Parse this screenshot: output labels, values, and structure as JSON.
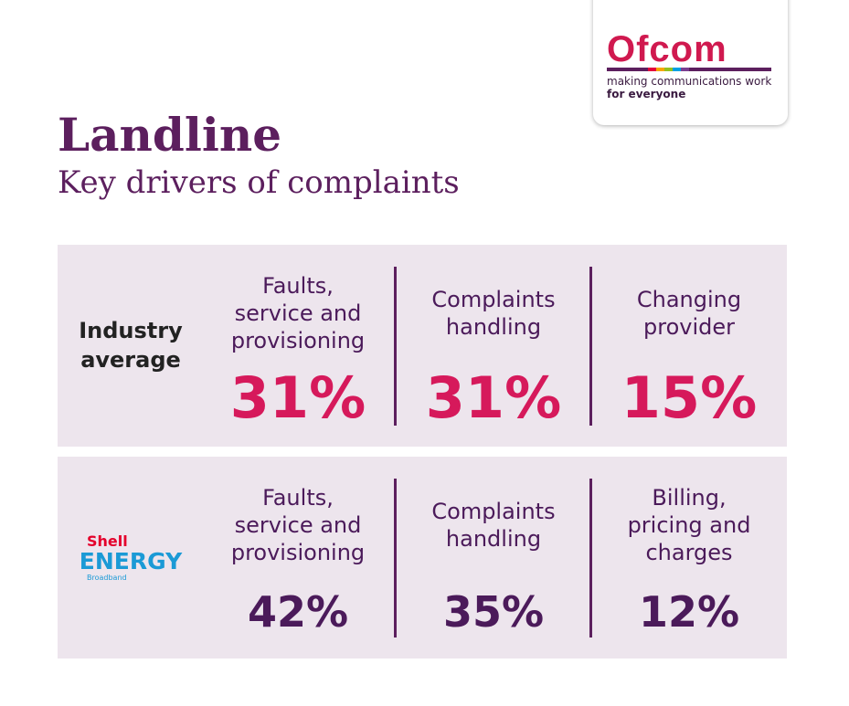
{
  "logo": {
    "name": "Ofcom",
    "tagline": [
      "making communications work",
      "for everyone"
    ]
  },
  "header": {
    "title": "Landline",
    "subtitle": "Key drivers of complaints"
  },
  "rows": [
    {
      "label": [
        "Industry",
        "average"
      ],
      "items": [
        {
          "lines": [
            "Faults,",
            "service and",
            "provisioning"
          ],
          "value": "31%"
        },
        {
          "lines": [
            "Complaints",
            "handling"
          ],
          "value": "31%"
        },
        {
          "lines": [
            "Changing",
            "provider"
          ],
          "value": "15%"
        }
      ]
    },
    {
      "brand": [
        "Shell",
        "ENERGY",
        "Broadband"
      ],
      "items": [
        {
          "lines": [
            "Faults,",
            "service and",
            "provisioning"
          ],
          "value": "42%"
        },
        {
          "lines": [
            "Complaints",
            "handling"
          ],
          "value": "35%"
        },
        {
          "lines": [
            "Billing,",
            "pricing and",
            "charges"
          ],
          "value": "12%"
        }
      ]
    }
  ]
}
